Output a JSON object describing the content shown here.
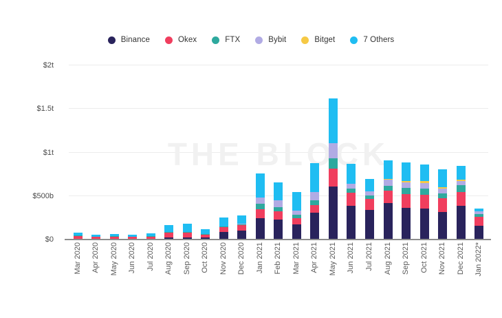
{
  "watermark": "THE BLOCK",
  "chart_data": {
    "type": "bar",
    "stacked": true,
    "title": "",
    "unit": "USD billions",
    "legend_position": "top",
    "grid": true,
    "ylim": [
      0,
      2000
    ],
    "y_ticks": [
      {
        "label": "$0",
        "value": 0
      },
      {
        "label": "$500b",
        "value": 500
      },
      {
        "label": "$1t",
        "value": 1000
      },
      {
        "label": "$1.5t",
        "value": 1500
      },
      {
        "label": "$2t",
        "value": 2000
      }
    ],
    "categories": [
      "Mar 2020",
      "Apr 2020",
      "May 2020",
      "Jun 2020",
      "Jul 2020",
      "Aug 2020",
      "Sep 2020",
      "Oct 2020",
      "Nov 2020",
      "Dec 2020",
      "Jan 2021",
      "Feb 2021",
      "Mar 2021",
      "Apr 2021",
      "May 2021",
      "Jun 2021",
      "Jul 2021",
      "Aug 2021",
      "Sep 2021",
      "Oct 2021",
      "Nov 2021",
      "Dec 2021",
      "Jan 2022*"
    ],
    "series": [
      {
        "name": "Binance",
        "color": "#29235c",
        "values": [
          10,
          8,
          8,
          8,
          10,
          26,
          25,
          22,
          87,
          106,
          245,
          230,
          172,
          310,
          610,
          387,
          339,
          418,
          365,
          357,
          318,
          384,
          159
        ]
      },
      {
        "name": "Okex",
        "color": "#f03e5e",
        "values": [
          30,
          22,
          25,
          20,
          25,
          53,
          55,
          35,
          53,
          61,
          105,
          92,
          74,
          85,
          205,
          151,
          124,
          140,
          159,
          154,
          154,
          159,
          100
        ]
      },
      {
        "name": "FTX",
        "color": "#2ea99e",
        "values": [
          4,
          3,
          3,
          3,
          4,
          5,
          6,
          5,
          8,
          9,
          65,
          53,
          40,
          55,
          120,
          45,
          40,
          58,
          66,
          74,
          58,
          79,
          37
        ]
      },
      {
        "name": "Bybit",
        "color": "#b1abe4",
        "values": [
          0,
          0,
          0,
          0,
          0,
          0,
          0,
          0,
          5,
          5,
          65,
          79,
          48,
          95,
          170,
          61,
          48,
          74,
          66,
          64,
          58,
          53,
          26
        ]
      },
      {
        "name": "Bitget",
        "color": "#f6c945",
        "values": [
          0,
          0,
          0,
          0,
          0,
          0,
          0,
          0,
          0,
          0,
          0,
          0,
          0,
          0,
          0,
          0,
          0,
          5,
          19,
          21,
          16,
          10,
          0
        ]
      },
      {
        "name": "7 Others",
        "color": "#1fbdf2",
        "values": [
          36,
          25,
          28,
          24,
          33,
          86,
          94,
          58,
          97,
          94,
          280,
          206,
          211,
          330,
          515,
          226,
          149,
          215,
          210,
          190,
          204,
          165,
          34
        ]
      }
    ]
  }
}
